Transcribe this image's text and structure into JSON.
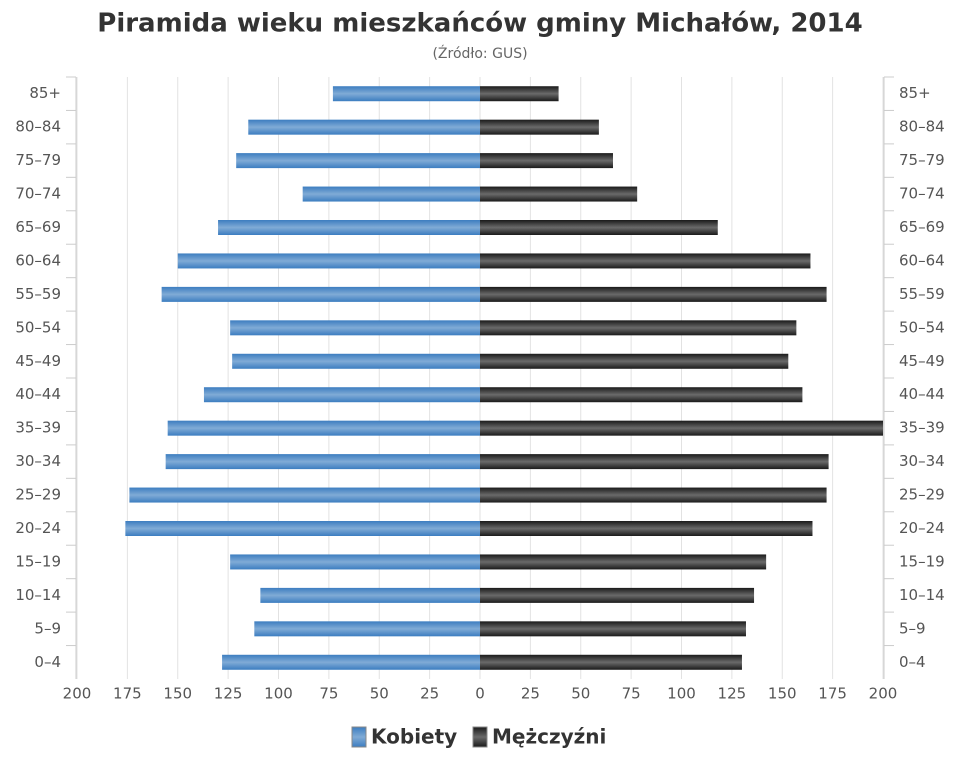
{
  "chart_data": {
    "type": "bar",
    "title": "Piramida wieku mieszkańców gminy Michałów, 2014",
    "subtitle": "(Źródło: GUS)",
    "categories": [
      "85+",
      "80–84",
      "75–79",
      "70–74",
      "65–69",
      "60–64",
      "55–59",
      "50–54",
      "45–49",
      "40–44",
      "35–39",
      "30–34",
      "25–29",
      "20–24",
      "15–19",
      "10–14",
      "5–9",
      "0–4"
    ],
    "series": [
      {
        "name": "Kobiety",
        "color": "#3c7dc0",
        "side": "left",
        "values": [
          73,
          115,
          121,
          88,
          130,
          150,
          158,
          124,
          123,
          137,
          155,
          156,
          174,
          176,
          124,
          109,
          112,
          128
        ]
      },
      {
        "name": "Mężczyźni",
        "color": "#1a1a1a",
        "side": "right",
        "values": [
          39,
          59,
          66,
          78,
          118,
          164,
          172,
          157,
          153,
          160,
          200,
          173,
          172,
          165,
          142,
          136,
          132,
          130
        ]
      }
    ],
    "xlim": [
      0,
      200
    ],
    "xticks": [
      0,
      25,
      50,
      75,
      100,
      125,
      150,
      175,
      200
    ],
    "grid": true
  }
}
